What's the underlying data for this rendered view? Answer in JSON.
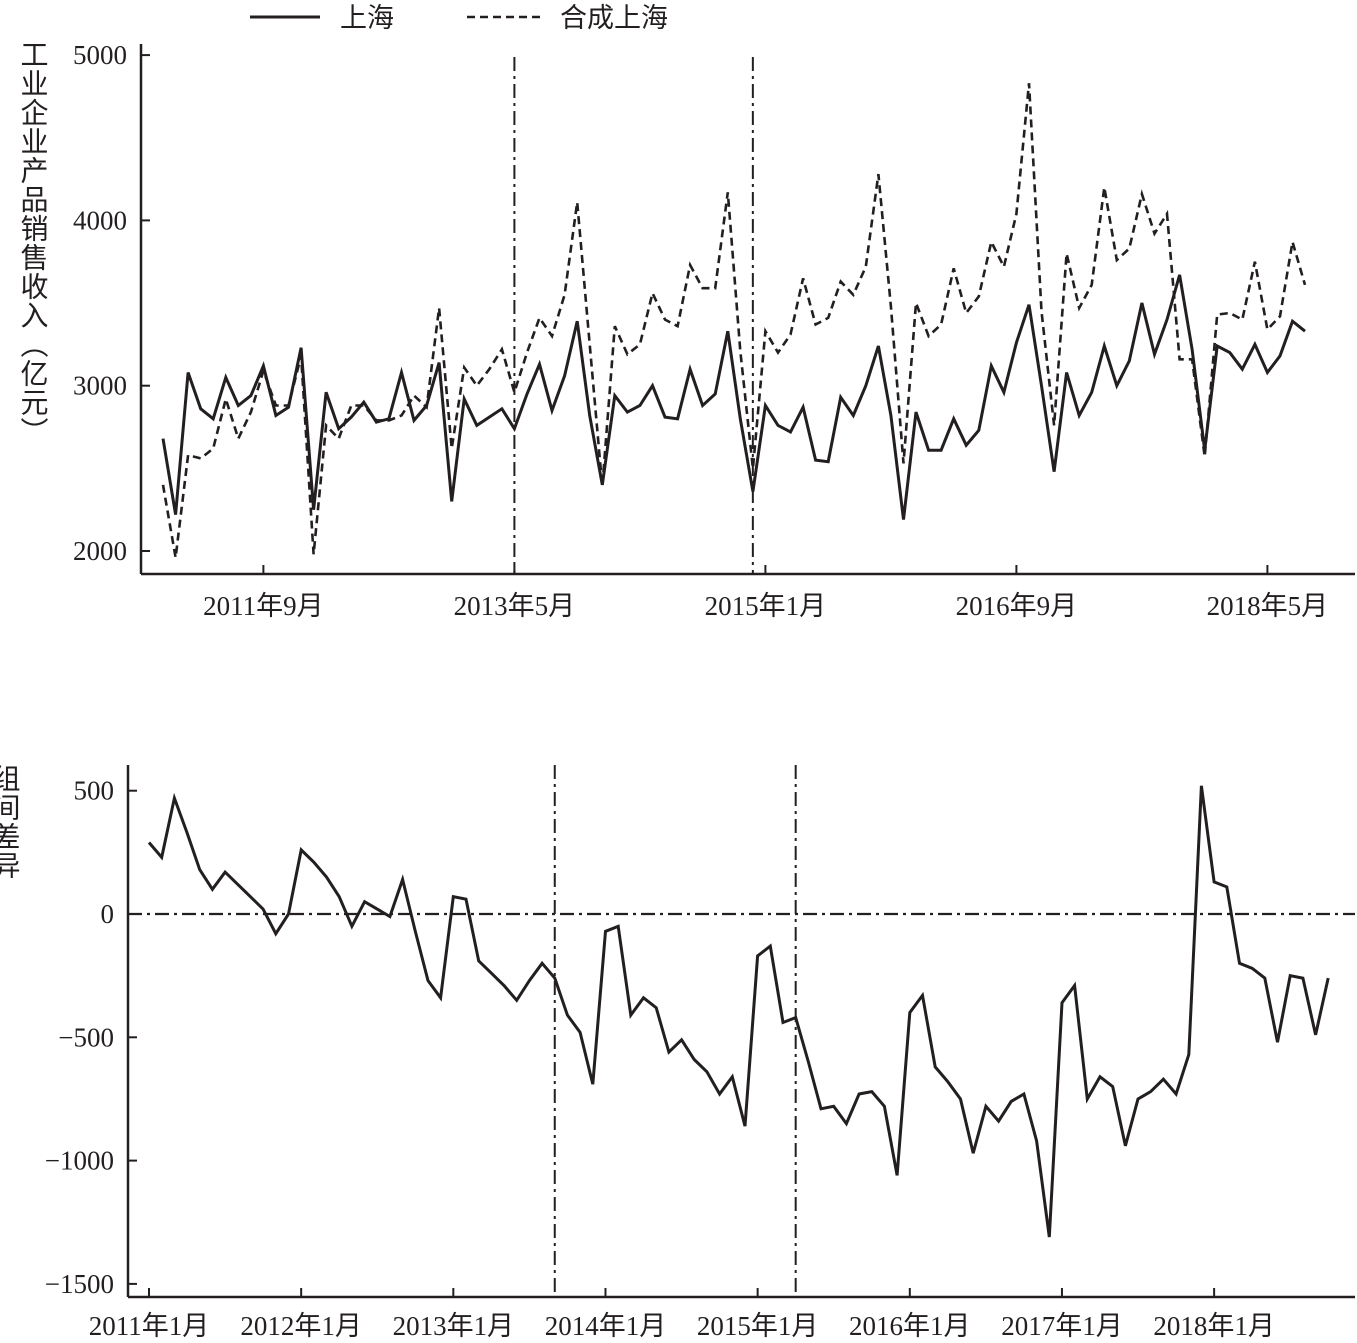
{
  "chart_data": [
    {
      "type": "line",
      "ylabel": "工业企业产品销售收入（亿元）",
      "ylim": [
        1870,
        5100
      ],
      "yticks": [
        2000,
        3000,
        4000,
        5000
      ],
      "x_tick_labels": [
        "2011年9月",
        "2013年5月",
        "2015年1月",
        "2016年9月",
        "2018年5月"
      ],
      "x_tick_index": [
        8,
        28,
        48,
        68,
        88
      ],
      "vlines_index": [
        28,
        47
      ],
      "legend_position": "top-left",
      "series": [
        {
          "name": "上海",
          "style": "solid",
          "values": [
            2680,
            2220,
            3080,
            2860,
            2800,
            3050,
            2880,
            2940,
            3120,
            2820,
            2870,
            3230,
            2250,
            2960,
            2740,
            2810,
            2900,
            2780,
            2800,
            3080,
            2790,
            2880,
            3140,
            2300,
            2920,
            2760,
            2810,
            2860,
            2740,
            2950,
            3130,
            2850,
            3060,
            3390,
            2820,
            2400,
            2940,
            2840,
            2880,
            3000,
            2810,
            2800,
            3100,
            2880,
            2950,
            3330,
            2800,
            2360,
            2880,
            2760,
            2720,
            2870,
            2550,
            2540,
            2930,
            2820,
            3000,
            3240,
            2820,
            2190,
            2840,
            2610,
            2610,
            2800,
            2640,
            2730,
            3120,
            2960,
            3260,
            3490,
            3000,
            2480,
            3080,
            2820,
            2960,
            3240,
            3000,
            3150,
            3500,
            3190,
            3400,
            3670,
            3220,
            2610,
            3240,
            3200,
            3100,
            3250,
            3080,
            3180,
            3390,
            3330
          ]
        },
        {
          "name": "合成上海",
          "style": "dashed",
          "values": [
            2400,
            1960,
            2580,
            2560,
            2620,
            2920,
            2680,
            2840,
            3090,
            2880,
            2880,
            3180,
            1980,
            2760,
            2680,
            2880,
            2880,
            2790,
            2790,
            2820,
            2940,
            2870,
            3470,
            2620,
            3110,
            3000,
            3100,
            3220,
            2960,
            3200,
            3410,
            3300,
            3550,
            4110,
            3250,
            2390,
            3360,
            3190,
            3250,
            3560,
            3400,
            3360,
            3730,
            3590,
            3590,
            4170,
            3210,
            2500,
            3330,
            3200,
            3310,
            3650,
            3370,
            3410,
            3630,
            3550,
            3720,
            4280,
            3480,
            2530,
            3500,
            3300,
            3370,
            3710,
            3440,
            3540,
            3870,
            3720,
            4040,
            4830,
            3450,
            2760,
            3800,
            3470,
            3610,
            4200,
            3760,
            3830,
            4160,
            3920,
            4040,
            3160,
            3160,
            2570,
            3430,
            3440,
            3400,
            3750,
            3340,
            3420,
            3870,
            3610
          ]
        }
      ]
    },
    {
      "type": "line",
      "ylabel": "组间差异",
      "ylim": [
        -1580,
        610
      ],
      "yticks": [
        -1500,
        -1000,
        -500,
        0,
        500
      ],
      "x_tick_labels": [
        "2011年1月",
        "2012年1月",
        "2013年1月",
        "2014年1月",
        "2015年1月",
        "2016年1月",
        "2017年1月",
        "2018年1月"
      ],
      "x_tick_index": [
        0,
        12,
        24,
        36,
        48,
        60,
        72,
        84
      ],
      "vlines_index": [
        32,
        51
      ],
      "hline_value": 0,
      "series": [
        {
          "style": "solid",
          "values": [
            290,
            230,
            470,
            330,
            180,
            100,
            170,
            120,
            70,
            20,
            -80,
            0,
            260,
            210,
            150,
            70,
            -50,
            50,
            20,
            -10,
            140,
            -70,
            -270,
            -340,
            70,
            60,
            -190,
            -240,
            -290,
            -350,
            -270,
            -200,
            -260,
            -410,
            -480,
            -690,
            -70,
            -50,
            -410,
            -340,
            -380,
            -560,
            -510,
            -590,
            -640,
            -730,
            -660,
            -860,
            -170,
            -130,
            -440,
            -420,
            -600,
            -790,
            -780,
            -850,
            -730,
            -720,
            -780,
            -1060,
            -400,
            -330,
            -620,
            -680,
            -750,
            -970,
            -780,
            -840,
            -760,
            -730,
            -920,
            -1310,
            -360,
            -290,
            -750,
            -660,
            -700,
            -940,
            -750,
            -720,
            -670,
            -730,
            -570,
            520,
            130,
            110,
            -200,
            -220,
            -260,
            -520,
            -250,
            -260,
            -490,
            -260
          ]
        }
      ]
    }
  ]
}
